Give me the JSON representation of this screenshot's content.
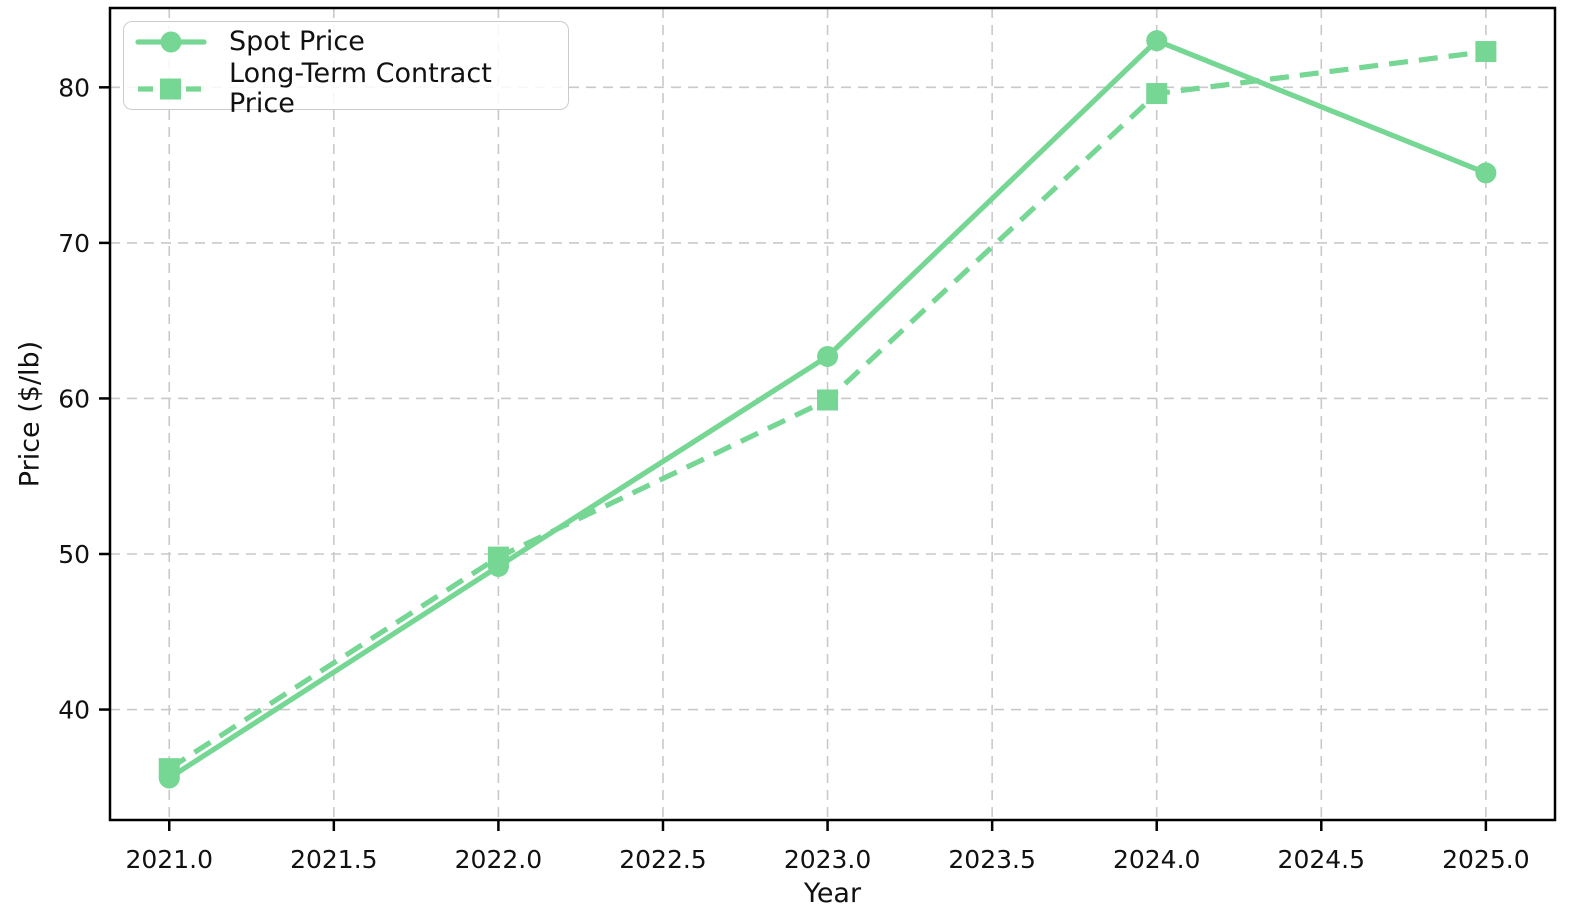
{
  "chart_data": {
    "type": "line",
    "title": "",
    "xlabel": "Year",
    "ylabel": "Price ($/lb)",
    "x": [
      2021,
      2022,
      2023,
      2024,
      2025
    ],
    "series": [
      {
        "name": "Spot Price",
        "values": [
          35.6,
          49.2,
          62.7,
          83.0,
          74.5
        ],
        "line_style": "solid",
        "marker": "circle",
        "color": "#76d694"
      },
      {
        "name": "Long-Term Contract Price",
        "values": [
          36.2,
          49.8,
          59.9,
          79.6,
          82.3
        ],
        "line_style": "dashed",
        "marker": "square",
        "color": "#76d694"
      }
    ],
    "xticks": {
      "values": [
        2021.0,
        2021.5,
        2022.0,
        2022.5,
        2023.0,
        2023.5,
        2024.0,
        2024.5,
        2025.0
      ],
      "labels": [
        "2021.0",
        "2021.5",
        "2022.0",
        "2022.5",
        "2023.0",
        "2023.5",
        "2024.0",
        "2024.5",
        "2025.0"
      ]
    },
    "yticks": {
      "values": [
        40,
        50,
        60,
        70,
        80
      ],
      "labels": [
        "40",
        "50",
        "60",
        "70",
        "80"
      ]
    },
    "xlim": [
      2020.82,
      2025.21
    ],
    "ylim": [
      32.9,
      85.1
    ],
    "grid": true,
    "legend_position": "upper-left",
    "grid_color": "#c9c9c9",
    "axis_color": "#000000",
    "text_color": "#111111"
  }
}
